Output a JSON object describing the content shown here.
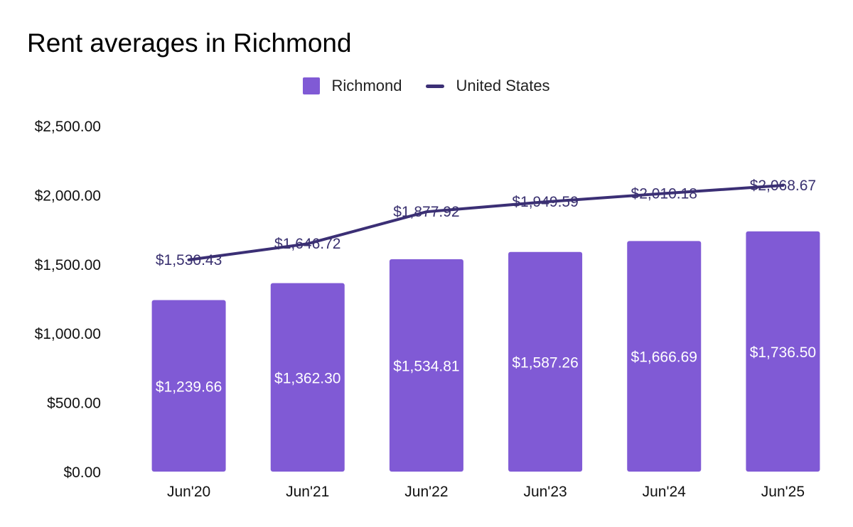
{
  "chart_data": {
    "type": "bar",
    "title": "Rent averages in Richmond",
    "categories": [
      "Jun'20",
      "Jun'21",
      "Jun'22",
      "Jun'23",
      "Jun'24",
      "Jun'25"
    ],
    "series": [
      {
        "name": "Richmond",
        "type": "bar",
        "color": "#805ad5",
        "values": [
          1239.66,
          1362.3,
          1534.81,
          1587.26,
          1666.69,
          1736.5
        ],
        "labels": [
          "$1,239.66",
          "$1,362.30",
          "$1,534.81",
          "$1,587.26",
          "$1,666.69",
          "$1,736.50"
        ]
      },
      {
        "name": "United States",
        "type": "line",
        "color": "#3b2f75",
        "values": [
          1530.43,
          1646.72,
          1877.92,
          1949.59,
          2010.18,
          2068.67
        ],
        "labels": [
          "$1,530.43",
          "$1,646.72",
          "$1,877.92",
          "$1,949.59",
          "$2,010.18",
          "$2,068.67"
        ]
      }
    ],
    "y_ticks": [
      0,
      500,
      1000,
      1500,
      2000,
      2500
    ],
    "y_tick_labels": [
      "$0.00",
      "$500.00",
      "$1,000.00",
      "$1,500.00",
      "$2,000.00",
      "$2,500.00"
    ],
    "ylim": [
      0,
      2500
    ],
    "xlabel": "",
    "ylabel": "",
    "grid": false,
    "legend_position": "top-center"
  }
}
